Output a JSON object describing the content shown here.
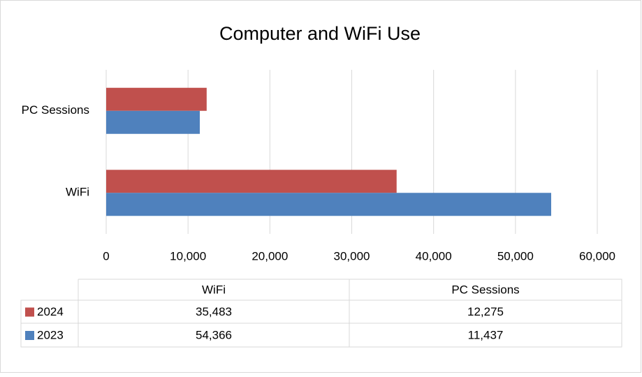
{
  "chart_data": {
    "type": "bar",
    "orientation": "horizontal",
    "title": "Computer and WiFi Use",
    "categories": [
      "WiFi",
      "PC Sessions"
    ],
    "series": [
      {
        "name": "2024",
        "color": "#c0504d",
        "values": [
          35483,
          12275
        ],
        "value_labels": [
          "35,483",
          "12,275"
        ]
      },
      {
        "name": "2023",
        "color": "#4f81bd",
        "values": [
          54366,
          11437
        ],
        "value_labels": [
          "54,366",
          "11,437"
        ]
      }
    ],
    "xlim": [
      0,
      60000
    ],
    "xticks": [
      0,
      {
        "value": 10000,
        "label": "10,000"
      },
      {
        "value": 20000,
        "label": "20,000"
      },
      {
        "value": 30000,
        "label": "30,000"
      },
      {
        "value": 40000,
        "label": "40,000"
      },
      {
        "value": 50000,
        "label": "50,000"
      },
      {
        "value": 60000,
        "label": "60,000"
      }
    ],
    "grid": true
  }
}
